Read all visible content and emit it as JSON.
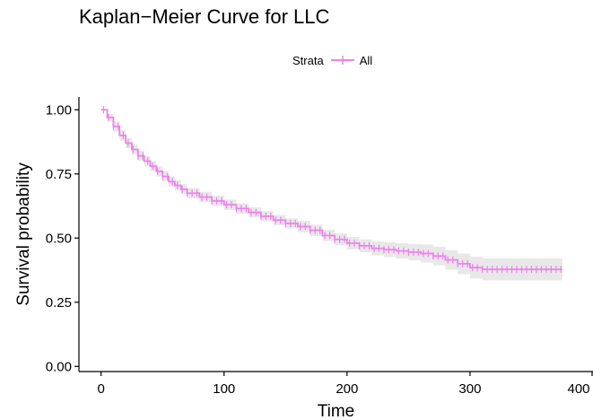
{
  "chart_data": {
    "type": "line",
    "title": "Kaplan−Meier Curve for LLC",
    "xlabel": "Time",
    "ylabel": "Survival probability",
    "xlim": [
      -18,
      400
    ],
    "ylim": [
      -0.02,
      1.05
    ],
    "x_ticks": [
      "0",
      "100",
      "200",
      "300",
      "400"
    ],
    "y_ticks": [
      "0.00",
      "0.25",
      "0.50",
      "0.75",
      "1.00"
    ],
    "x_tick_values": [
      0,
      100,
      200,
      300,
      400
    ],
    "y_tick_values": [
      0,
      0.25,
      0.5,
      0.75,
      1.0
    ],
    "legend": {
      "title": "Strata",
      "position": "top",
      "entries": [
        "All"
      ]
    },
    "grid": false,
    "confidence_band": true,
    "series": [
      {
        "name": "All",
        "color": "#ee82ee",
        "band_color": "#e8e8e8",
        "x": [
          0,
          5,
          10,
          15,
          20,
          25,
          30,
          35,
          40,
          45,
          50,
          55,
          60,
          65,
          70,
          80,
          90,
          100,
          110,
          120,
          130,
          140,
          150,
          160,
          170,
          180,
          190,
          200,
          210,
          220,
          230,
          240,
          250,
          260,
          270,
          280,
          290,
          300,
          310,
          320,
          330,
          340,
          350,
          360,
          375
        ],
        "y": [
          1.0,
          0.97,
          0.935,
          0.9,
          0.87,
          0.845,
          0.82,
          0.8,
          0.78,
          0.76,
          0.74,
          0.72,
          0.705,
          0.69,
          0.675,
          0.66,
          0.645,
          0.63,
          0.615,
          0.6,
          0.585,
          0.57,
          0.557,
          0.545,
          0.53,
          0.51,
          0.495,
          0.48,
          0.47,
          0.46,
          0.455,
          0.45,
          0.445,
          0.44,
          0.43,
          0.415,
          0.4,
          0.385,
          0.378,
          0.378,
          0.378,
          0.378,
          0.378,
          0.378,
          0.378
        ],
        "lower": [
          1.0,
          0.955,
          0.915,
          0.88,
          0.85,
          0.825,
          0.8,
          0.78,
          0.76,
          0.74,
          0.72,
          0.7,
          0.685,
          0.67,
          0.655,
          0.64,
          0.625,
          0.61,
          0.595,
          0.58,
          0.565,
          0.55,
          0.537,
          0.523,
          0.508,
          0.488,
          0.472,
          0.456,
          0.445,
          0.433,
          0.426,
          0.42,
          0.413,
          0.405,
          0.394,
          0.377,
          0.36,
          0.343,
          0.335,
          0.335,
          0.335,
          0.335,
          0.335,
          0.335,
          0.335
        ],
        "upper": [
          1.0,
          0.985,
          0.955,
          0.92,
          0.89,
          0.865,
          0.84,
          0.82,
          0.8,
          0.78,
          0.76,
          0.74,
          0.725,
          0.71,
          0.695,
          0.68,
          0.665,
          0.65,
          0.635,
          0.62,
          0.605,
          0.59,
          0.577,
          0.567,
          0.552,
          0.532,
          0.518,
          0.504,
          0.495,
          0.487,
          0.484,
          0.48,
          0.477,
          0.475,
          0.466,
          0.453,
          0.44,
          0.427,
          0.421,
          0.421,
          0.421,
          0.421,
          0.421,
          0.421,
          0.421
        ]
      }
    ]
  }
}
